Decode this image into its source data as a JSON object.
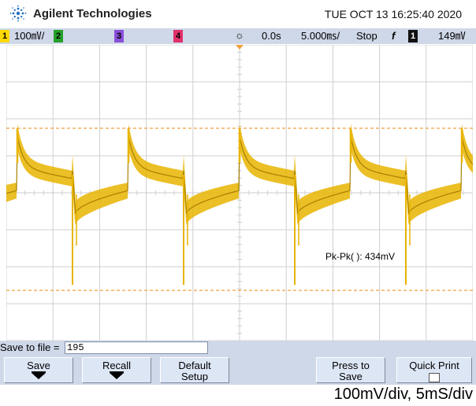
{
  "header": {
    "brand": "Agilent Technologies",
    "datetime": "TUE OCT 13 16:25:40 2020"
  },
  "status": {
    "ch1_label": "1",
    "ch1_scale": "100㎷/",
    "ch2_label": "2",
    "ch3_label": "3",
    "ch4_label": "4",
    "trigger_icon": "☼",
    "time_offset": "0.0s",
    "timebase": "5.000㎳/",
    "run_state": "Stop",
    "edge_icon": "f",
    "trigger_channel": "1",
    "trigger_level": "149㎷"
  },
  "colors": {
    "trace": "#e8b400",
    "trace_dark": "#a88000",
    "grid": "#cfcfcf",
    "marker": "#f0a040",
    "panel": "#cfd8e8"
  },
  "measurement": {
    "text": "Pk-Pk(  ): 434mV"
  },
  "file": {
    "label": "Save to file =",
    "value": "195"
  },
  "softkeys": {
    "save": "Save",
    "recall": "Recall",
    "default_line1": "Default",
    "default_line2": "Setup",
    "press_line1": "Press to",
    "press_line2": "Save",
    "quick_print": "Quick Print"
  },
  "caption": "100mV/div, 5mS/div"
}
